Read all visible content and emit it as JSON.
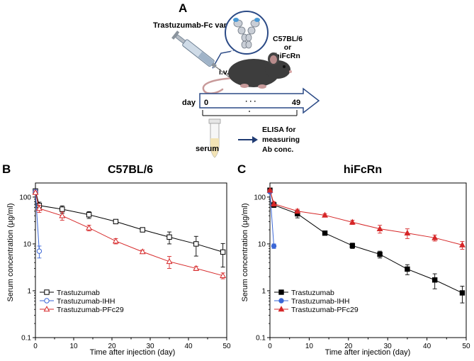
{
  "panel_a": {
    "letter": "A",
    "variant_label": "Trastuzumab-Fc variant",
    "mouse_label_line1": "C57BL/6",
    "mouse_label_line2": "or",
    "mouse_label_line3": "hiFcRn",
    "route_label": "i.v.",
    "day_label": "day",
    "day_start": "0",
    "day_dots": "· · ·",
    "day_end": "49",
    "sample_label": "serum",
    "assay_line1": "ELISA for",
    "assay_line2": "measuring",
    "assay_line3": "Ab conc.",
    "colors": {
      "arrow_outline": "#2b4a86",
      "mouse": "#3d3d3d",
      "tail": "#c89a9a",
      "tube_liquid": "#f2e3b5",
      "syringe": "#9fb3c8"
    }
  },
  "chart_data": [
    {
      "letter": "B",
      "type": "line",
      "title": "C57BL/6",
      "xlabel": "Time after injection (day)",
      "ylabel": "Serum concentration (µg/ml)",
      "xlim": [
        0,
        50
      ],
      "ylim": [
        0.1,
        200
      ],
      "yscale": "log",
      "xticks": [
        "0",
        "10",
        "20",
        "30",
        "40",
        "50"
      ],
      "yticks": [
        "0.1",
        "1",
        "10",
        "100"
      ],
      "legend_position": "bottom-left",
      "series": [
        {
          "name": "Trastuzumab",
          "color": "#000000",
          "marker": "square-open",
          "x": [
            0,
            1,
            7,
            14,
            21,
            28,
            35,
            42,
            49
          ],
          "y": [
            135,
            66,
            55,
            42,
            30,
            20,
            14,
            10,
            6.7
          ],
          "err": [
            10,
            12,
            10,
            7,
            2,
            2,
            4,
            4.5,
            3.5
          ]
        },
        {
          "name": "Trastuzumab-IHH",
          "color": "#3a66d6",
          "marker": "circle-open",
          "x": [
            0,
            1
          ],
          "y": [
            130,
            7
          ],
          "err": [
            8,
            2
          ]
        },
        {
          "name": "Trastuzumab-PFc29",
          "color": "#d62728",
          "marker": "triangle-open",
          "x": [
            0,
            1,
            7,
            14,
            21,
            28,
            35,
            42,
            49
          ],
          "y": [
            125,
            57,
            40,
            22,
            11.5,
            6.8,
            4.2,
            3.0,
            2.1
          ],
          "err": [
            8,
            10,
            8,
            3,
            1.5,
            0.6,
            1.2,
            0.3,
            0.3
          ]
        }
      ]
    },
    {
      "letter": "C",
      "type": "line",
      "title": "hiFcRn",
      "xlabel": "Time after injection (day)",
      "ylabel": "Serum concentration (µg/ml)",
      "xlim": [
        0,
        50
      ],
      "ylim": [
        0.1,
        200
      ],
      "yscale": "log",
      "xticks": [
        "0",
        "10",
        "20",
        "30",
        "40",
        "50"
      ],
      "yticks": [
        "0.1",
        "1",
        "10",
        "100"
      ],
      "legend_position": "bottom-left",
      "series": [
        {
          "name": "Trastuzumab",
          "color": "#000000",
          "marker": "square-filled",
          "x": [
            0,
            1,
            7,
            14,
            21,
            28,
            35,
            42,
            49
          ],
          "y": [
            140,
            68,
            44,
            17,
            9.2,
            6.0,
            2.9,
            1.7,
            0.9
          ],
          "err": [
            6,
            8,
            8,
            1.5,
            1.2,
            1.0,
            0.7,
            0.6,
            0.35
          ]
        },
        {
          "name": "Trastuzumab-IHH",
          "color": "#3a66d6",
          "marker": "circle-filled",
          "x": [
            0,
            1
          ],
          "y": [
            130,
            9
          ],
          "err": [
            6,
            1
          ]
        },
        {
          "name": "Trastuzumab-PFc29",
          "color": "#d62728",
          "marker": "triangle-filled",
          "x": [
            0,
            1,
            7,
            14,
            21,
            28,
            35,
            42,
            49
          ],
          "y": [
            140,
            72,
            50,
            41,
            29,
            21,
            17,
            13.5,
            9.5
          ],
          "err": [
            6,
            8,
            5,
            3,
            3,
            4,
            4,
            2,
            1.8
          ]
        }
      ]
    }
  ]
}
